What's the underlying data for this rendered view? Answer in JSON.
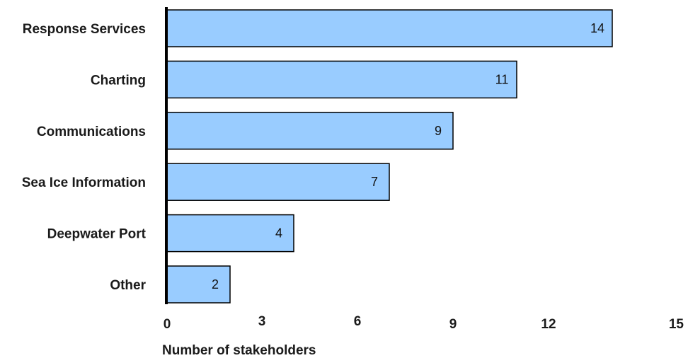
{
  "chart_data": {
    "type": "bar",
    "orientation": "horizontal",
    "categories": [
      "Response Services",
      "Charting",
      "Communications",
      "Sea Ice Information",
      "Deepwater Port",
      "Other"
    ],
    "values": [
      14,
      11,
      9,
      7,
      4,
      2
    ],
    "xlabel": "Number of stakeholders",
    "ylabel": "",
    "xlim": [
      0,
      15
    ],
    "xticks": [
      0,
      3,
      6,
      9,
      12,
      15
    ],
    "grid": false,
    "data_labels": true
  },
  "colors": {
    "bar_fill": "#99ccff",
    "bar_stroke": "#000000",
    "axis": "#000000"
  }
}
